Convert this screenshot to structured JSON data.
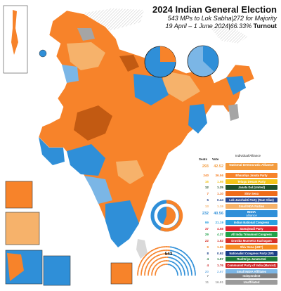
{
  "title": "2024 Indian General Election",
  "subtitle": "543 MPs to Lok Sabha|272 for Majority",
  "date_range": "19 April – 1 June 2024|66.33%",
  "turnout_label": "Turnout",
  "legend": {
    "col_seats": "Seats",
    "col_vote": "Vote",
    "col_party": "Individual/Alliance",
    "nda": [
      {
        "seats": "293",
        "vote": "42.52",
        "name": "National Democratic Alliance",
        "color": "#f39b3d",
        "big": true
      },
      {
        "seats": "240",
        "vote": "36.56",
        "name": "Bharatiya Janata Party",
        "color": "#f7832a"
      },
      {
        "seats": "16",
        "vote": "1.98",
        "name": "Telugu Desam Party",
        "color": "#f2c419"
      },
      {
        "seats": "12",
        "vote": "1.25",
        "name": "Janata Dal (United)",
        "color": "#1f4f2a"
      },
      {
        "seats": "7",
        "vote": "1.10",
        "name": "Shiv Sena",
        "color": "#ef6c1a"
      },
      {
        "seats": "5",
        "vote": "0.44",
        "name": "Lok Janshakti Party (Ram Vilas)",
        "color": "#27468f"
      },
      {
        "seats": "13",
        "vote": "1.19",
        "name": "Small NDA Parties",
        "color": "#f6b26b"
      }
    ],
    "india": [
      {
        "seats": "232",
        "vote": "40.56",
        "name": "INDIA",
        "sub": "alliance",
        "color": "#2f8fd8",
        "big": true
      },
      {
        "seats": "99",
        "vote": "21.19",
        "name": "Indian National Congress",
        "color": "#2a9fe0"
      },
      {
        "seats": "37",
        "vote": "4.58",
        "name": "Samajwadi Party",
        "color": "#e0262f"
      },
      {
        "seats": "29",
        "vote": "4.37",
        "name": "All India Trinamool Congress",
        "color": "#22a24a"
      },
      {
        "seats": "22",
        "vote": "1.82",
        "name": "Dravida Munnetra Kazhagam",
        "color": "#d73027"
      },
      {
        "seats": "9",
        "vote": "1.65",
        "name": "Shiv Sena (UBT)",
        "color": "#f58a1f"
      },
      {
        "seats": "8",
        "vote": "0.92",
        "name": "Nationalist Congress Party (SP)",
        "color": "#1a3f87"
      },
      {
        "seats": "4",
        "vote": "1.57",
        "name": "Rashtriya Janata Dal",
        "color": "#1c7a3a"
      },
      {
        "seats": "4",
        "vote": "1.76",
        "name": "Communist Party of India (Marxist)",
        "color": "#cc2222"
      },
      {
        "seats": "20",
        "vote": "2.67",
        "name": "Small INDIA Affiliates",
        "color": "#7bb6e6"
      }
    ],
    "others": [
      {
        "seats": "7",
        "vote": "",
        "name": "Independent",
        "color": "#7f7f7f"
      },
      {
        "seats": "11",
        "vote": "16.91",
        "name": "Unaffiliated",
        "color": "#9b9b9b"
      }
    ]
  },
  "seat_total": "543",
  "colors": {
    "nda": "#f7832a",
    "nda_light": "#f6b26b",
    "nda_dark": "#c25a12",
    "india": "#2f8fd8",
    "india_light": "#7bb6e6",
    "other": "#a5a5a5"
  }
}
